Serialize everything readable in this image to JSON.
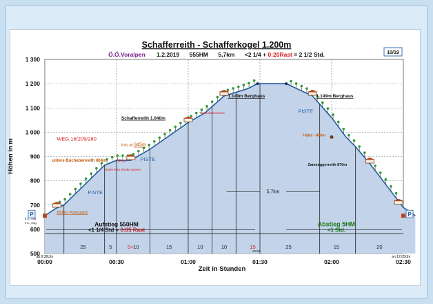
{
  "chart_data": {
    "type": "area",
    "title": "Schafferreith - Schafferkogel 1.200m",
    "subtitle": {
      "region": "Ö.Ö.Voralpen",
      "date": "1.2.2019",
      "elevation_gain": "555HM",
      "distance": "5,7km",
      "time_prefix": "<2 1/4 + ",
      "time_rest": "0:20Rast",
      "time_total": " = 2 1/2 Std."
    },
    "page_badge": "10/19",
    "ylabel": "Höhen in m",
    "xlabel": "Zeit in Stunden",
    "ylim": [
      500,
      1300
    ],
    "xlim_minutes": [
      0,
      150
    ],
    "y_ticks": [
      "1 300",
      "1 200",
      "1 100",
      "1 000",
      "900",
      "800",
      "700",
      "600",
      "500"
    ],
    "x_ticks": [
      {
        "label": "00:00",
        "minute": 0
      },
      {
        "label": "00:30",
        "minute": 30
      },
      {
        "label": "01:00",
        "minute": 60
      },
      {
        "label": "01:30",
        "minute": 90
      },
      {
        "label": "02:00",
        "minute": 120
      },
      {
        "label": "02:30",
        "minute": 150
      }
    ],
    "grid": true,
    "profile": [
      {
        "minute": 0,
        "elevation": 656
      },
      {
        "minute": 5,
        "elevation": 688
      },
      {
        "minute": 8,
        "elevation": 700
      },
      {
        "minute": 25,
        "elevation": 864
      },
      {
        "minute": 30,
        "elevation": 884
      },
      {
        "minute": 36,
        "elevation": 884
      },
      {
        "minute": 44,
        "elevation": 930
      },
      {
        "minute": 60,
        "elevation": 1040
      },
      {
        "minute": 67,
        "elevation": 1080
      },
      {
        "minute": 75,
        "elevation": 1149
      },
      {
        "minute": 85,
        "elevation": 1180
      },
      {
        "minute": 89,
        "elevation": 1200
      },
      {
        "minute": 95,
        "elevation": 1200
      },
      {
        "minute": 101,
        "elevation": 1200
      },
      {
        "minute": 112,
        "elevation": 1149
      },
      {
        "minute": 120,
        "elevation": 1060
      },
      {
        "minute": 126,
        "elevation": 980
      },
      {
        "minute": 130,
        "elevation": 940
      },
      {
        "minute": 136,
        "elevation": 870
      },
      {
        "minute": 150,
        "elevation": 690
      },
      {
        "minute": 155,
        "elevation": 656
      }
    ],
    "segment_lines_minutes": [
      8,
      25,
      30,
      44,
      60,
      70,
      80,
      90,
      115,
      130
    ],
    "segment_labels": [
      {
        "text": "25",
        "minute": 16,
        "color": "#222222"
      },
      {
        "text": "5",
        "minute": 27.5,
        "color": "#222222"
      },
      {
        "text": "5+10",
        "minute": 37,
        "color": "#d41c1c",
        "rest": "5+"
      },
      {
        "text": "15",
        "minute": 52,
        "color": "#222222"
      },
      {
        "text": "10",
        "minute": 65,
        "color": "#222222"
      },
      {
        "text": "10",
        "minute": 75,
        "color": "#222222"
      },
      {
        "text": "15",
        "minute": 87,
        "color": "#d41c1c"
      },
      {
        "text": "25",
        "minute": 102,
        "color": "#222222"
      },
      {
        "text": "15",
        "minute": 122,
        "color": "#222222"
      },
      {
        "text": "20",
        "minute": 140,
        "color": "#222222"
      }
    ],
    "annotations": {
      "parkplatz": "656m Parkplatz",
      "fees": "€ 3,- /Std\n€ 6,- /Tag",
      "parking_sign": "P",
      "buchebenreith": "untere Buchebenreith 864m",
      "rast_sign": "5Rast",
      "junction_848": "848m links Straße queren",
      "links_prefix": "links ab ",
      "links_alt": "945m",
      "weg": "WEG 16/209/280",
      "schafferreith": "Schafferreith  1.040m",
      "tuerkenkarschanze": "Türkenkarschanze",
      "berghaus_up": "1.149m Berghaus",
      "berghaus_down": "1.149m Berghaus",
      "piste": "PISTE",
      "huette": "Hütte ~980m",
      "zamsegg": "Zamseggerreith 870m",
      "distance_marker": "5,7km",
      "summit_time": "10:56",
      "ascent_title": "Aufstieg 550HM",
      "ascent_time_prefix": "<1 1/4 Std + ",
      "ascent_rest": "0:05 Rast",
      "descent_title": "Abstieg 5HM",
      "descent_time": "<1 Std.",
      "start_time": "ab 9:36Uhr",
      "end_time": "an 12:05Uhr"
    },
    "colors": {
      "fill": "#c3d4ea",
      "line": "#1f5e9e",
      "grid": "#6b7a8c",
      "rest_red": "#d41c1c",
      "descent_green": "#1a7a1a",
      "annotation_orange": "#c4570a"
    }
  }
}
